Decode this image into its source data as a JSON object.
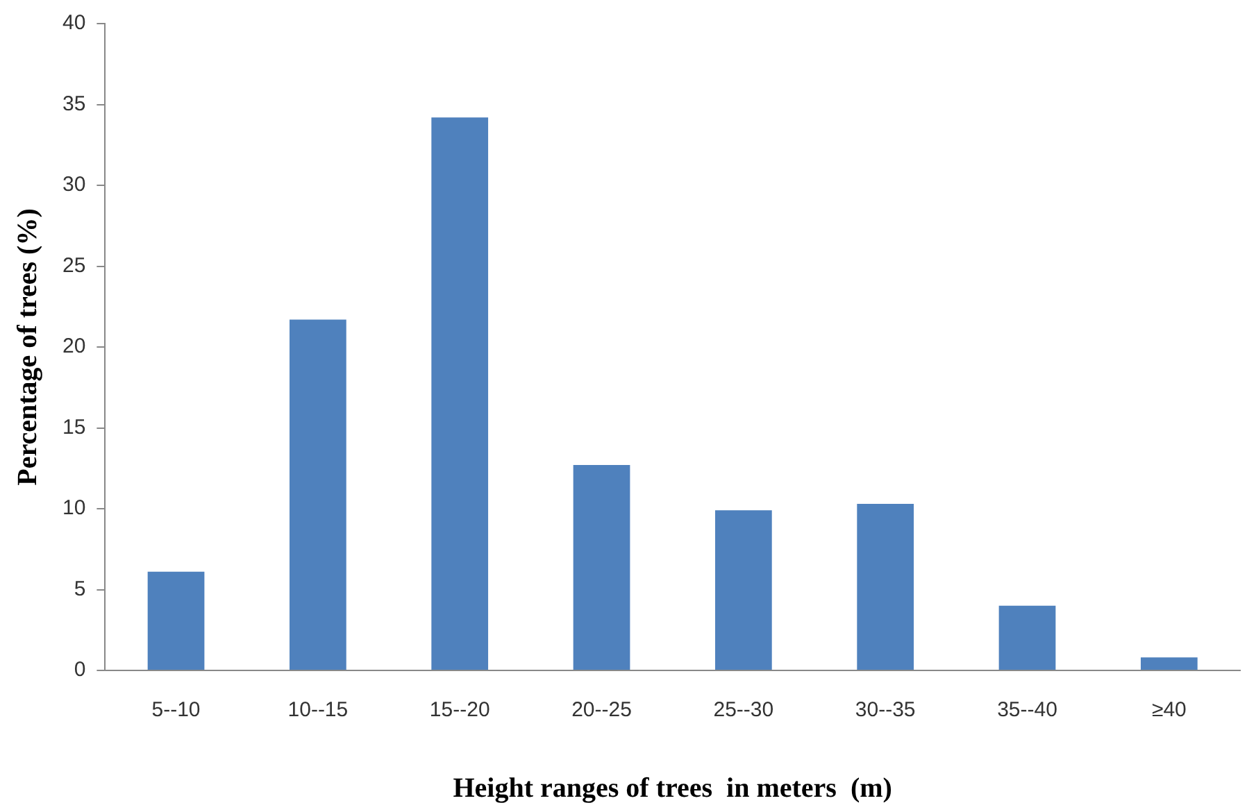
{
  "chart_data": {
    "type": "bar",
    "xlabel": "Height ranges of trees  in meters  (m)",
    "ylabel": "Percentage of trees (%)",
    "categories": [
      "5--10",
      "10--15",
      "15--20",
      "20--25",
      "25--30",
      "30--35",
      "35--40",
      "≥40"
    ],
    "values": [
      6.1,
      21.7,
      34.2,
      12.7,
      9.9,
      10.3,
      4,
      0.8
    ],
    "color": "#4f81bd",
    "ylim": [
      0,
      40
    ],
    "yticks": [
      0,
      5,
      10,
      15,
      20,
      25,
      30,
      35,
      40
    ],
    "grid": false,
    "legend": false
  }
}
